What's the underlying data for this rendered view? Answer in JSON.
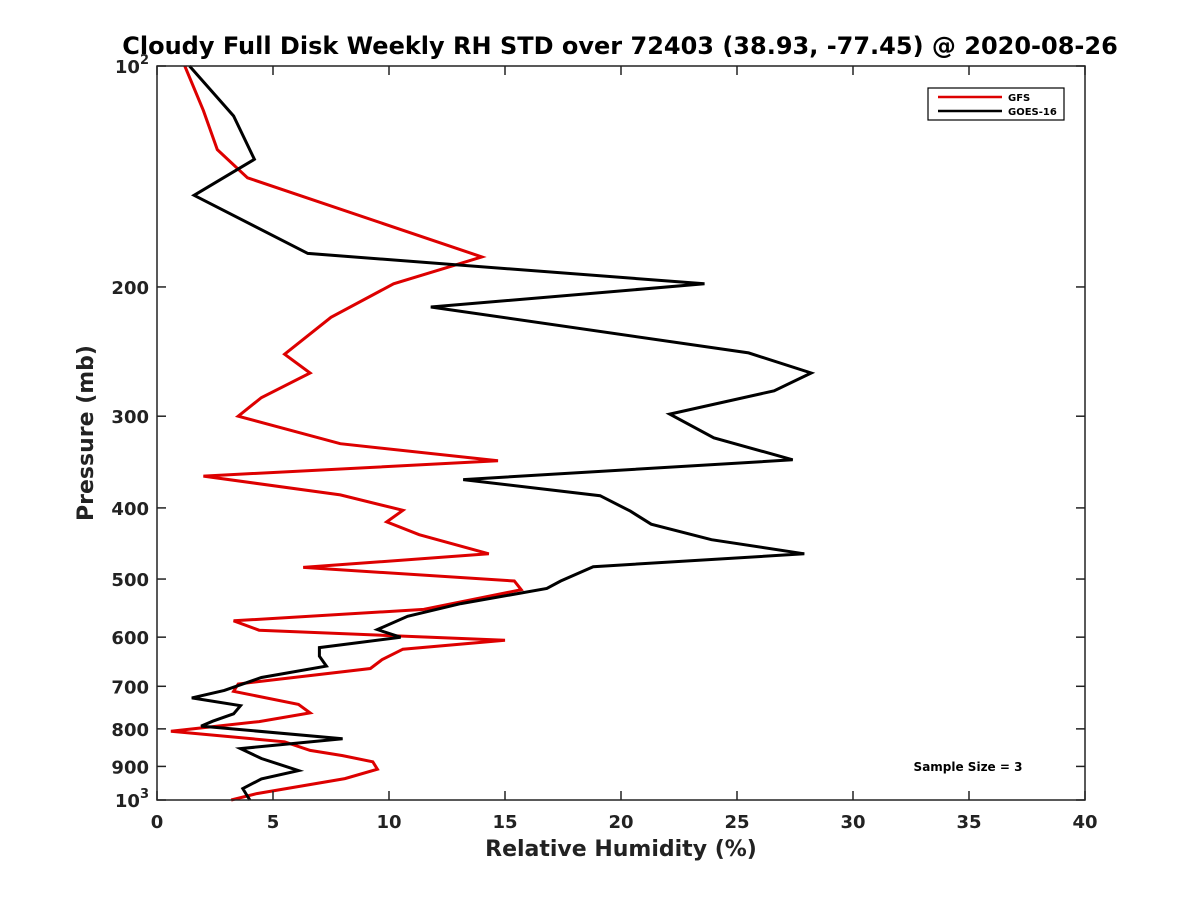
{
  "chart_data": {
    "type": "line",
    "title": "Cloudy Full Disk Weekly RH STD over 72403 (38.93, -77.45) @ 2020-08-26",
    "xlabel": "Relative Humidity (%)",
    "ylabel": "Pressure (mb)",
    "xlim": [
      0,
      40
    ],
    "ylim": [
      100,
      1000
    ],
    "y_scale": "log",
    "y_reversed": true,
    "x_ticks": [
      0,
      5,
      10,
      15,
      20,
      25,
      30,
      35,
      40
    ],
    "y_ticks": [
      {
        "value": 100,
        "base": "10",
        "exp": "2"
      },
      {
        "value": 200,
        "label": "200"
      },
      {
        "value": 300,
        "label": "300"
      },
      {
        "value": 400,
        "label": "400"
      },
      {
        "value": 500,
        "label": "500"
      },
      {
        "value": 600,
        "label": "600"
      },
      {
        "value": 700,
        "label": "700"
      },
      {
        "value": 800,
        "label": "800"
      },
      {
        "value": 900,
        "label": "900"
      },
      {
        "value": 1000,
        "base": "10",
        "exp": "3"
      }
    ],
    "grid": false,
    "legend_position": "top-right",
    "annotation": "Sample Size = 3",
    "series": [
      {
        "name": "GFS",
        "color": "#dd0000",
        "points": [
          [
            1.2,
            100
          ],
          [
            2.0,
            115
          ],
          [
            2.6,
            130
          ],
          [
            3.9,
            142
          ],
          [
            14.0,
            182
          ],
          [
            10.2,
            198
          ],
          [
            7.5,
            220
          ],
          [
            5.5,
            247
          ],
          [
            6.6,
            262
          ],
          [
            4.5,
            283
          ],
          [
            3.5,
            300
          ],
          [
            7.9,
            327
          ],
          [
            14.7,
            345
          ],
          [
            2.0,
            362
          ],
          [
            7.9,
            384
          ],
          [
            10.6,
            403
          ],
          [
            9.9,
            418
          ],
          [
            11.3,
            435
          ],
          [
            14.3,
            462
          ],
          [
            6.3,
            482
          ],
          [
            15.4,
            503
          ],
          [
            15.7,
            517
          ],
          [
            11.5,
            550
          ],
          [
            3.3,
            570
          ],
          [
            4.4,
            587
          ],
          [
            15.0,
            606
          ],
          [
            10.6,
            623
          ],
          [
            9.7,
            644
          ],
          [
            9.2,
            662
          ],
          [
            3.5,
            695
          ],
          [
            3.3,
            711
          ],
          [
            6.1,
            741
          ],
          [
            6.6,
            761
          ],
          [
            4.4,
            782
          ],
          [
            0.6,
            806
          ],
          [
            5.5,
            833
          ],
          [
            6.6,
            856
          ],
          [
            8.0,
            870
          ],
          [
            9.3,
            887
          ],
          [
            9.5,
            908
          ],
          [
            8.1,
            935
          ],
          [
            4.3,
            980
          ],
          [
            3.2,
            1000
          ]
        ]
      },
      {
        "name": "GOES-16",
        "color": "#000000",
        "points": [
          [
            1.4,
            100
          ],
          [
            3.3,
            117
          ],
          [
            4.2,
            134
          ],
          [
            1.6,
            150
          ],
          [
            6.5,
            180
          ],
          [
            23.6,
            198
          ],
          [
            11.8,
            213
          ],
          [
            25.5,
            246
          ],
          [
            28.2,
            262
          ],
          [
            26.6,
            277
          ],
          [
            22.1,
            298
          ],
          [
            24.0,
            321
          ],
          [
            27.4,
            344
          ],
          [
            13.2,
            366
          ],
          [
            19.1,
            385
          ],
          [
            20.4,
            404
          ],
          [
            21.3,
            421
          ],
          [
            23.9,
            442
          ],
          [
            27.9,
            462
          ],
          [
            18.8,
            481
          ],
          [
            17.4,
            503
          ],
          [
            16.8,
            515
          ],
          [
            13.1,
            540
          ],
          [
            10.8,
            562
          ],
          [
            9.5,
            586
          ],
          [
            10.5,
            600
          ],
          [
            7.0,
            620
          ],
          [
            7.0,
            637
          ],
          [
            7.3,
            657
          ],
          [
            4.5,
            681
          ],
          [
            2.9,
            709
          ],
          [
            1.5,
            726
          ],
          [
            3.6,
            744
          ],
          [
            3.3,
            763
          ],
          [
            2.4,
            781
          ],
          [
            1.9,
            793
          ],
          [
            8.0,
            825
          ],
          [
            3.6,
            851
          ],
          [
            4.5,
            878
          ],
          [
            6.1,
            912
          ],
          [
            4.5,
            936
          ],
          [
            3.7,
            965
          ],
          [
            4.0,
            1000
          ]
        ]
      }
    ]
  }
}
